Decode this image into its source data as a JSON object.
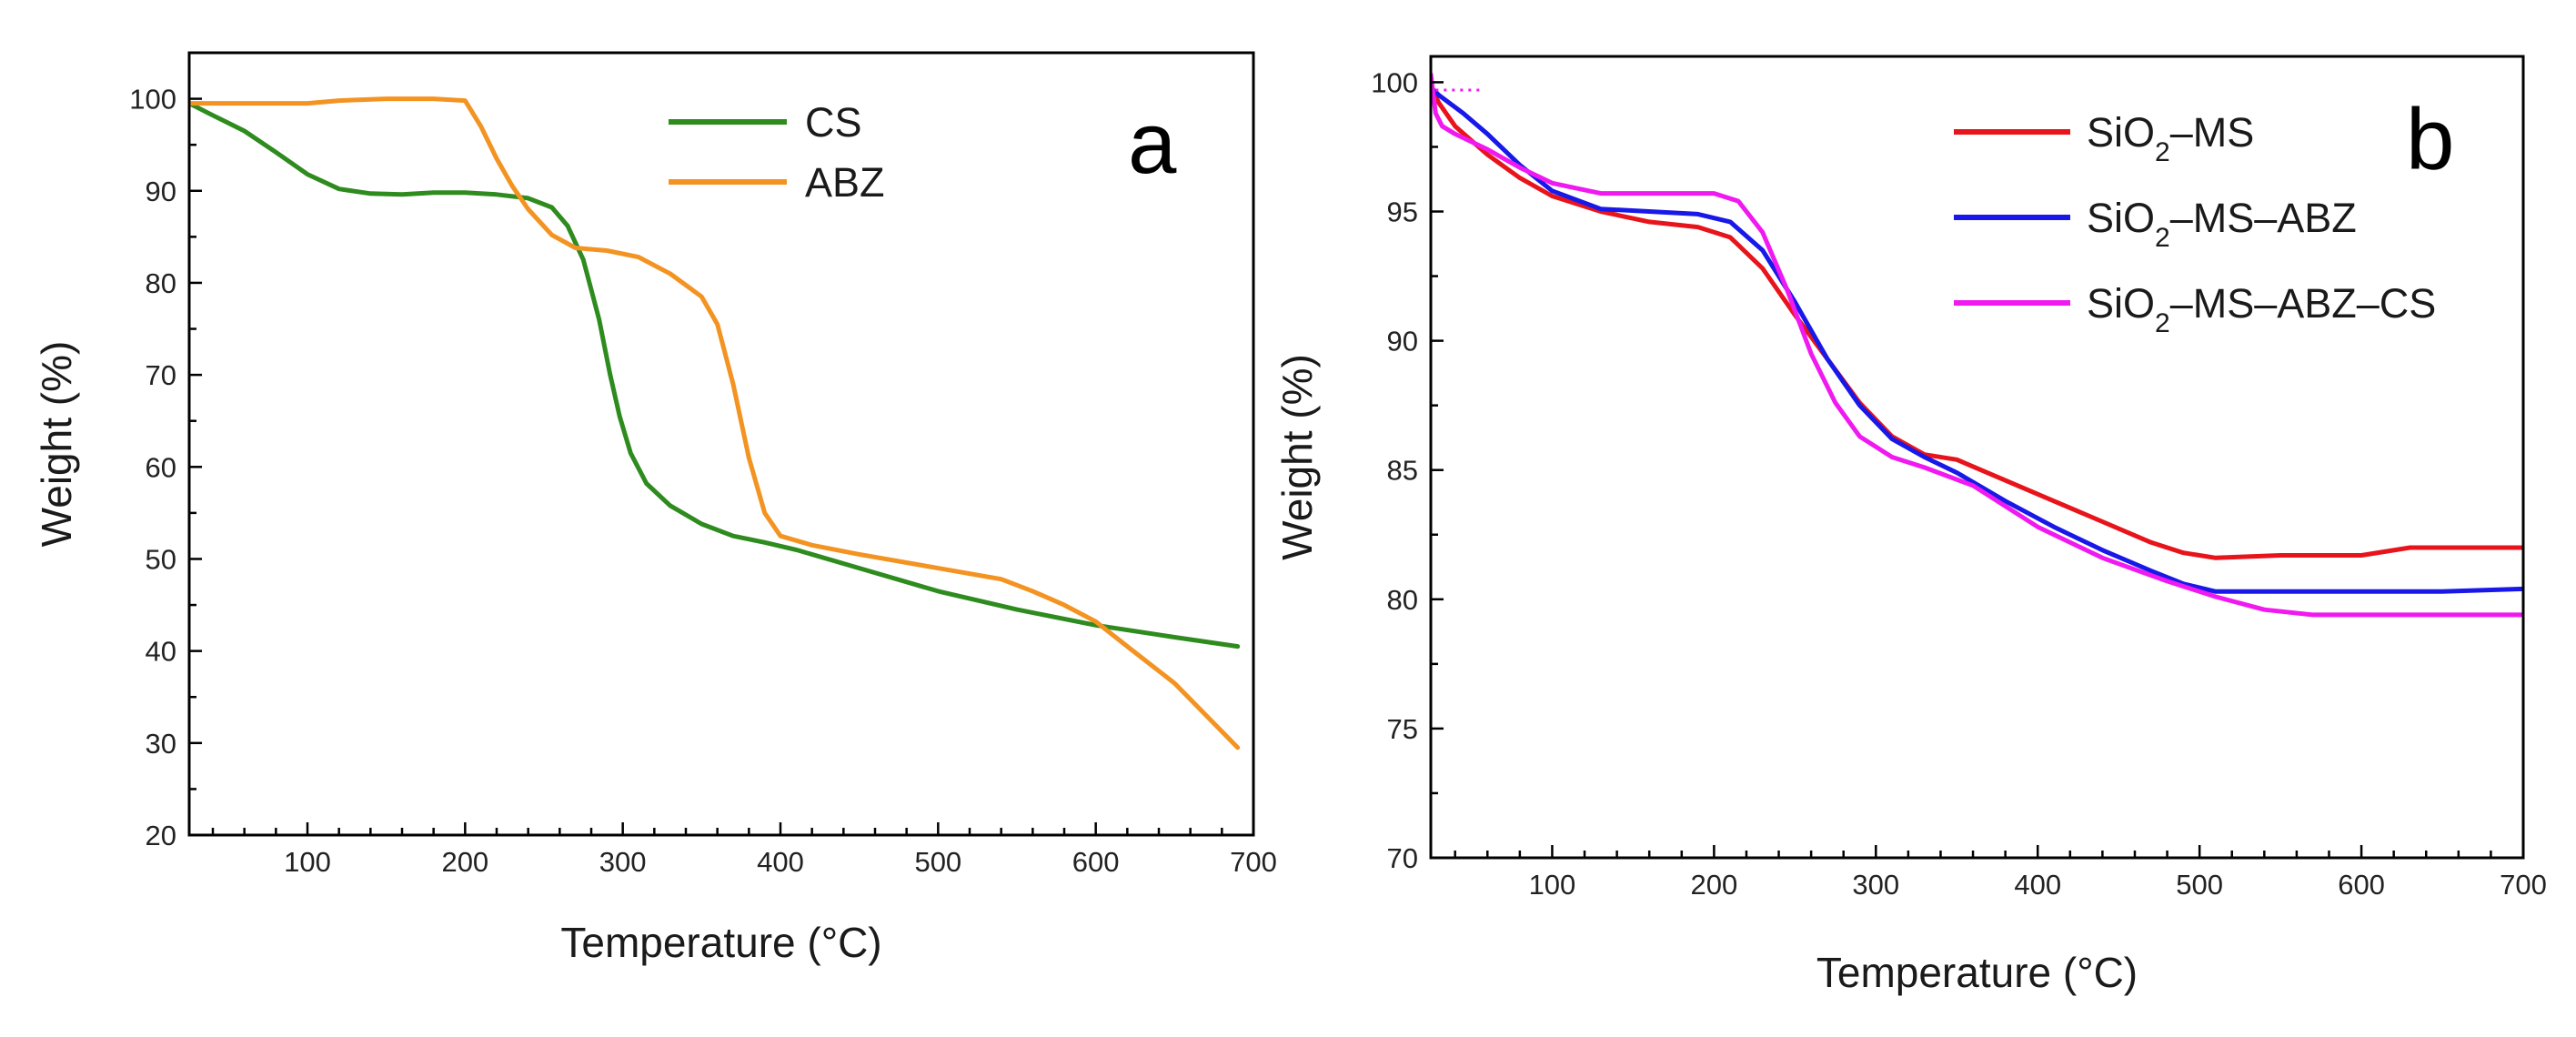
{
  "chart_data": [
    {
      "panel": "a",
      "type": "line",
      "xlabel": "Temperature (°C)",
      "ylabel": "Weight (%)",
      "xlim": [
        25,
        700
      ],
      "ylim": [
        20,
        105
      ],
      "xticks": [
        100,
        200,
        300,
        400,
        500,
        600,
        700
      ],
      "yticks": [
        20,
        30,
        40,
        50,
        60,
        70,
        80,
        90,
        100
      ],
      "legend_position": "top-center",
      "series": [
        {
          "name": "CS",
          "color": "#2e8b1e",
          "x": [
            25,
            40,
            60,
            80,
            100,
            120,
            140,
            160,
            180,
            200,
            220,
            240,
            255,
            265,
            275,
            285,
            292,
            298,
            305,
            315,
            330,
            350,
            370,
            390,
            410,
            450,
            500,
            550,
            600,
            650,
            690
          ],
          "y": [
            99.5,
            98.2,
            96.5,
            94.2,
            91.8,
            90.2,
            89.7,
            89.6,
            89.8,
            89.8,
            89.6,
            89.2,
            88.2,
            86.2,
            82.5,
            76,
            70,
            65.5,
            61.5,
            58.2,
            55.8,
            53.8,
            52.5,
            51.8,
            51,
            49,
            46.5,
            44.5,
            42.8,
            41.5,
            40.5
          ]
        },
        {
          "name": "ABZ",
          "color": "#f39321",
          "x": [
            25,
            60,
            100,
            120,
            150,
            180,
            200,
            210,
            220,
            230,
            240,
            255,
            270,
            290,
            310,
            330,
            350,
            360,
            370,
            380,
            390,
            400,
            420,
            450,
            500,
            540,
            560,
            580,
            600,
            620,
            650,
            670,
            690
          ],
          "y": [
            99.5,
            99.5,
            99.5,
            99.8,
            100,
            100,
            99.8,
            97,
            93.5,
            90.5,
            88,
            85.2,
            83.8,
            83.5,
            82.8,
            81,
            78.5,
            75.5,
            69,
            61,
            55,
            52.5,
            51.5,
            50.5,
            49,
            47.8,
            46.5,
            45,
            43.2,
            40.5,
            36.5,
            33,
            29.5
          ]
        }
      ]
    },
    {
      "panel": "b",
      "type": "line",
      "xlabel": "Temperature (°C)",
      "ylabel": "Weight (%)",
      "xlim": [
        25,
        700
      ],
      "ylim": [
        70,
        101
      ],
      "xticks": [
        100,
        200,
        300,
        400,
        500,
        600,
        700
      ],
      "yticks": [
        70,
        75,
        80,
        85,
        90,
        95,
        100
      ],
      "legend_position": "top-right",
      "series": [
        {
          "name": "SiO2–MS",
          "label_parts": [
            "SiO",
            "2",
            "–MS"
          ],
          "color": "#e8141b",
          "x": [
            25,
            30,
            40,
            60,
            80,
            100,
            130,
            160,
            190,
            210,
            230,
            250,
            270,
            290,
            310,
            330,
            350,
            380,
            410,
            440,
            470,
            490,
            510,
            550,
            600,
            630,
            660,
            700
          ],
          "y": [
            99.8,
            99.2,
            98.3,
            97.2,
            96.3,
            95.6,
            95.0,
            94.6,
            94.4,
            94.0,
            92.8,
            91.0,
            89.3,
            87.6,
            86.3,
            85.6,
            85.4,
            84.6,
            83.8,
            83.0,
            82.2,
            81.8,
            81.6,
            81.7,
            81.7,
            82.0,
            82.0,
            82.0
          ]
        },
        {
          "name": "SiO2–MS–ABZ",
          "label_parts": [
            "SiO",
            "2",
            "–MS–ABZ"
          ],
          "color": "#1818e8",
          "x": [
            25,
            30,
            45,
            60,
            80,
            100,
            130,
            160,
            190,
            210,
            230,
            250,
            270,
            290,
            310,
            330,
            350,
            380,
            410,
            440,
            470,
            490,
            510,
            550,
            600,
            650,
            700
          ],
          "y": [
            99.8,
            99.5,
            98.8,
            98.0,
            96.8,
            95.8,
            95.1,
            95.0,
            94.9,
            94.6,
            93.5,
            91.5,
            89.3,
            87.5,
            86.2,
            85.5,
            84.9,
            83.8,
            82.8,
            81.9,
            81.1,
            80.6,
            80.3,
            80.3,
            80.3,
            80.3,
            80.4
          ]
        },
        {
          "name": "SiO2–MS–ABZ–CS",
          "label_parts": [
            "SiO",
            "2",
            "–MS–ABZ–CS"
          ],
          "color": "#f019f0",
          "x": [
            25,
            28,
            32,
            40,
            60,
            80,
            100,
            130,
            160,
            200,
            215,
            230,
            245,
            260,
            275,
            290,
            310,
            330,
            360,
            400,
            440,
            480,
            510,
            540,
            570,
            600,
            650,
            700
          ],
          "y": [
            100.3,
            98.8,
            98.3,
            98.0,
            97.4,
            96.7,
            96.1,
            95.7,
            95.7,
            95.7,
            95.4,
            94.2,
            92.0,
            89.5,
            87.6,
            86.3,
            85.5,
            85.1,
            84.4,
            82.8,
            81.6,
            80.7,
            80.1,
            79.6,
            79.4,
            79.4,
            79.4,
            79.4
          ]
        }
      ]
    }
  ]
}
